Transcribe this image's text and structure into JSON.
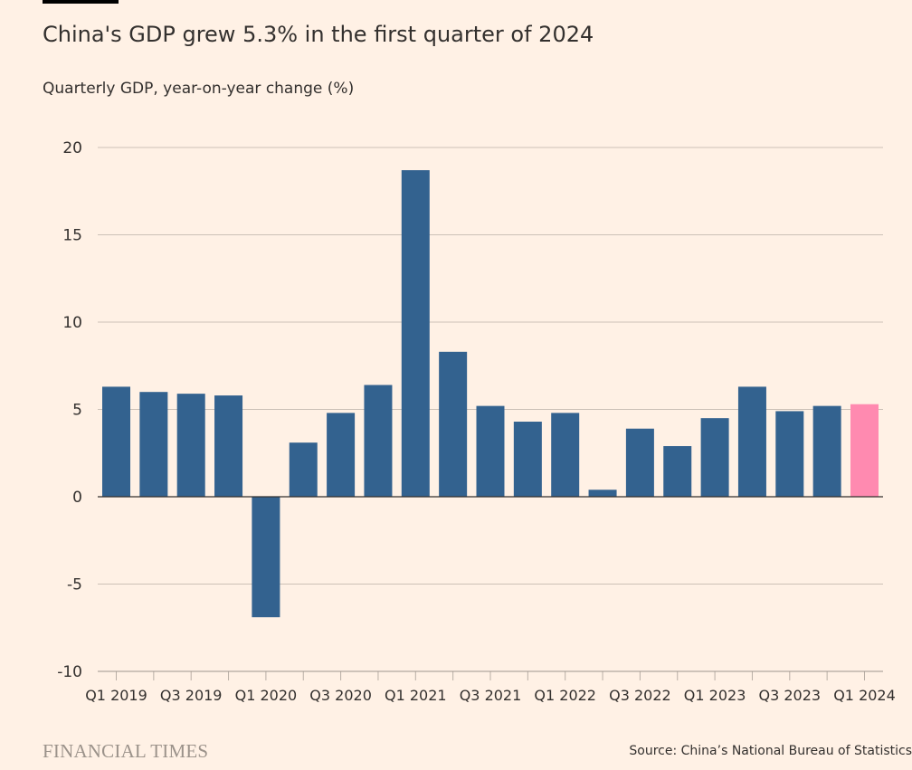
{
  "header": {
    "title": "China's GDP grew 5.3% in the first quarter of 2024",
    "subtitle": "Quarterly GDP, year-on-year change (%)"
  },
  "footer": {
    "logo": "FINANCIAL TIMES",
    "source": "Source: China’s National Bureau of Statistics"
  },
  "chart_data": {
    "type": "bar",
    "title": "China's GDP grew 5.3% in the first quarter of 2024",
    "subtitle": "Quarterly GDP, year-on-year change (%)",
    "categories": [
      "Q1 2019",
      "Q2 2019",
      "Q3 2019",
      "Q4 2019",
      "Q1 2020",
      "Q2 2020",
      "Q3 2020",
      "Q4 2020",
      "Q1 2021",
      "Q2 2021",
      "Q3 2021",
      "Q4 2021",
      "Q1 2022",
      "Q2 2022",
      "Q3 2022",
      "Q4 2022",
      "Q1 2023",
      "Q2 2023",
      "Q3 2023",
      "Q4 2023",
      "Q1 2024"
    ],
    "values": [
      6.3,
      6.0,
      5.9,
      5.8,
      -6.9,
      3.1,
      4.8,
      6.4,
      18.7,
      8.3,
      5.2,
      4.3,
      4.8,
      0.4,
      3.9,
      2.9,
      4.5,
      6.3,
      4.9,
      5.2,
      5.3
    ],
    "x_tick_labels": [
      "Q1 2019",
      "Q3 2019",
      "Q1 2020",
      "Q3 2020",
      "Q1 2021",
      "Q3 2021",
      "Q1 2022",
      "Q3 2022",
      "Q1 2023",
      "Q3 2023",
      "Q1 2024"
    ],
    "y_ticks": [
      20,
      15,
      10,
      5,
      0,
      -5,
      -10
    ],
    "ylim": [
      -10,
      20
    ],
    "grid": true,
    "colors": {
      "default": "#33628f",
      "highlight": "#ff8ab0"
    },
    "highlight_category": "Q1 2024"
  }
}
